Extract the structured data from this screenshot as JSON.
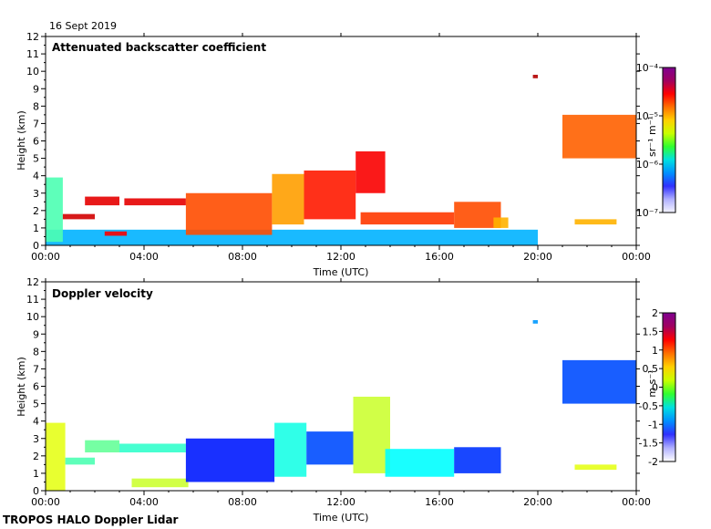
{
  "date_label": "16 Sept 2019",
  "footer_label": "TROPOS HALO Doppler Lidar",
  "colors": {
    "jet": [
      "#00007f",
      "#0000ff",
      "#007fff",
      "#00ffff",
      "#7fff7f",
      "#ffff00",
      "#ff7f00",
      "#ff0000",
      "#7f0000"
    ],
    "backscatter_cb": [
      "#f4f4ff",
      "#b0b0ff",
      "#3030ff",
      "#0090ff",
      "#00e0e0",
      "#30ff30",
      "#c8ff00",
      "#ffd000",
      "#ff7000",
      "#ff0000",
      "#a00060",
      "#7f0090"
    ],
    "velocity_cb": [
      "#ffffff",
      "#b0b0ff",
      "#3030ff",
      "#0090ff",
      "#00e0e0",
      "#30ff30",
      "#c8ff00",
      "#ffd000",
      "#ff7000",
      "#ff0000",
      "#a00060",
      "#7f0090"
    ]
  },
  "chart_data": [
    {
      "type": "heatmap",
      "title": "Attenuated backscatter coefficient",
      "xlabel": "Time (UTC)",
      "ylabel": "Height (km)",
      "x_ticks": [
        "00:00",
        "04:00",
        "08:00",
        "12:00",
        "16:00",
        "20:00",
        "00:00"
      ],
      "xlim": [
        0,
        24
      ],
      "ylim": [
        0,
        12
      ],
      "y_ticks": [
        "0",
        "1",
        "2",
        "3",
        "4",
        "5",
        "6",
        "7",
        "8",
        "9",
        "10",
        "11",
        "12"
      ],
      "colorbar": {
        "label": "sr⁻¹ m⁻¹",
        "scale": "log",
        "range": [
          "1e-7",
          "1e-4"
        ],
        "tick_labels": [
          "10⁻⁴",
          "10⁻⁵",
          "10⁻⁶",
          "10⁻⁷"
        ]
      },
      "features": [
        {
          "name": "boundary layer (low signal)",
          "t_start": 0.0,
          "t_end": 20.0,
          "h_bottom": 0.0,
          "h_top": 0.9,
          "level": 0.3
        },
        {
          "name": "aerosol layer",
          "t_start": 0.0,
          "t_end": 0.7,
          "h_bottom": 0.2,
          "h_top": 3.9,
          "level": 0.45
        },
        {
          "name": "cloud layer",
          "t_start": 0.7,
          "t_end": 2.0,
          "h_bottom": 1.5,
          "h_top": 1.8,
          "level": 0.92
        },
        {
          "name": "cloud layer",
          "t_start": 1.6,
          "t_end": 3.0,
          "h_bottom": 2.3,
          "h_top": 2.8,
          "level": 0.9
        },
        {
          "name": "cloud layer",
          "t_start": 2.4,
          "t_end": 3.3,
          "h_bottom": 0.55,
          "h_top": 0.8,
          "level": 0.88
        },
        {
          "name": "cloud layer",
          "t_start": 3.2,
          "t_end": 5.7,
          "h_bottom": 2.3,
          "h_top": 2.7,
          "level": 0.9
        },
        {
          "name": "cloud layer",
          "t_start": 5.7,
          "t_end": 9.2,
          "h_bottom": 0.6,
          "h_top": 3.0,
          "level": 0.8
        },
        {
          "name": "cloud layer",
          "t_start": 9.2,
          "t_end": 10.5,
          "h_bottom": 1.2,
          "h_top": 4.1,
          "level": 0.72
        },
        {
          "name": "cloud layer",
          "t_start": 10.5,
          "t_end": 12.6,
          "h_bottom": 1.5,
          "h_top": 4.3,
          "level": 0.85
        },
        {
          "name": "cloud layer",
          "t_start": 12.6,
          "t_end": 13.8,
          "h_bottom": 3.0,
          "h_top": 5.4,
          "level": 0.88
        },
        {
          "name": "cloud layer",
          "t_start": 12.8,
          "t_end": 16.6,
          "h_bottom": 1.2,
          "h_top": 1.9,
          "level": 0.82
        },
        {
          "name": "cloud layer",
          "t_start": 16.6,
          "t_end": 18.5,
          "h_bottom": 1.0,
          "h_top": 2.5,
          "level": 0.8
        },
        {
          "name": "cloud layer",
          "t_start": 18.2,
          "t_end": 18.8,
          "h_bottom": 1.0,
          "h_top": 1.6,
          "level": 0.7
        },
        {
          "name": "high cloud",
          "t_start": 19.8,
          "t_end": 20.0,
          "h_bottom": 9.6,
          "h_top": 9.8,
          "level": 0.95
        },
        {
          "name": "cirrus",
          "t_start": 21.0,
          "t_end": 24.0,
          "h_bottom": 5.0,
          "h_top": 7.5,
          "level": 0.78
        },
        {
          "name": "cloud layer",
          "t_start": 21.5,
          "t_end": 23.2,
          "h_bottom": 1.2,
          "h_top": 1.5,
          "level": 0.7
        }
      ]
    },
    {
      "type": "heatmap",
      "title": "Doppler velocity",
      "xlabel": "Time (UTC)",
      "ylabel": "Height (km)",
      "x_ticks": [
        "00:00",
        "04:00",
        "08:00",
        "12:00",
        "16:00",
        "20:00",
        "00:00"
      ],
      "xlim": [
        0,
        24
      ],
      "ylim": [
        0,
        12
      ],
      "y_ticks": [
        "0",
        "1",
        "2",
        "3",
        "4",
        "5",
        "6",
        "7",
        "8",
        "9",
        "10",
        "11",
        "12"
      ],
      "colorbar": {
        "label": "m s⁻¹",
        "scale": "linear",
        "range": [
          -2,
          2
        ],
        "tick_labels": [
          "2",
          "1.5",
          "1",
          "0.5",
          "0",
          "-0.5",
          "-1",
          "-1.5",
          "-2"
        ]
      },
      "features": [
        {
          "name": "updraft/downdraft mix",
          "t_start": 0.0,
          "t_end": 0.8,
          "h_bottom": 0.0,
          "h_top": 3.9,
          "velocity": 0.4
        },
        {
          "name": "layer",
          "t_start": 0.8,
          "t_end": 2.0,
          "h_bottom": 1.5,
          "h_top": 1.9,
          "velocity": -0.2
        },
        {
          "name": "layer",
          "t_start": 1.6,
          "t_end": 3.0,
          "h_bottom": 2.2,
          "h_top": 2.9,
          "velocity": -0.1
        },
        {
          "name": "layer",
          "t_start": 3.0,
          "t_end": 5.7,
          "h_bottom": 2.2,
          "h_top": 2.7,
          "velocity": -0.3
        },
        {
          "name": "layer",
          "t_start": 3.5,
          "t_end": 5.8,
          "h_bottom": 0.2,
          "h_top": 0.7,
          "velocity": 0.3
        },
        {
          "name": "downdraft region",
          "t_start": 5.7,
          "t_end": 9.3,
          "h_bottom": 0.5,
          "h_top": 3.0,
          "velocity": -1.4
        },
        {
          "name": "mixed region",
          "t_start": 9.3,
          "t_end": 10.6,
          "h_bottom": 0.8,
          "h_top": 3.9,
          "velocity": -0.4
        },
        {
          "name": "downdraft region",
          "t_start": 10.6,
          "t_end": 12.5,
          "h_bottom": 1.5,
          "h_top": 3.4,
          "velocity": -1.2
        },
        {
          "name": "updraft region",
          "t_start": 12.5,
          "t_end": 14.0,
          "h_bottom": 1.0,
          "h_top": 5.4,
          "velocity": 0.3
        },
        {
          "name": "layer",
          "t_start": 13.8,
          "t_end": 16.6,
          "h_bottom": 0.8,
          "h_top": 2.4,
          "velocity": -0.5
        },
        {
          "name": "layer",
          "t_start": 16.6,
          "t_end": 18.5,
          "h_bottom": 1.0,
          "h_top": 2.5,
          "velocity": -1.3
        },
        {
          "name": "high cloud",
          "t_start": 19.8,
          "t_end": 20.0,
          "h_bottom": 9.6,
          "h_top": 9.8,
          "velocity": -0.9
        },
        {
          "name": "cirrus",
          "t_start": 21.0,
          "t_end": 24.0,
          "h_bottom": 5.0,
          "h_top": 7.5,
          "velocity": -1.2
        },
        {
          "name": "layer",
          "t_start": 21.5,
          "t_end": 23.2,
          "h_bottom": 1.2,
          "h_top": 1.5,
          "velocity": 0.4
        }
      ]
    }
  ]
}
